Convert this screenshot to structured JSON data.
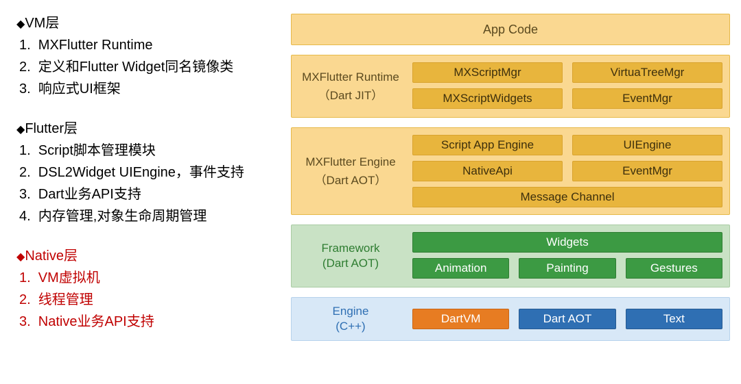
{
  "left": {
    "sections": [
      {
        "color": "black",
        "title": "VM层",
        "items": [
          "MXFlutter Runtime",
          "定义和Flutter Widget同名镜像类",
          "响应式UI框架"
        ]
      },
      {
        "color": "black",
        "title": "Flutter层",
        "items": [
          "Script脚本管理模块",
          "DSL2Widget UIEngine，事件支持",
          "Dart业务API支持",
          "内存管理,对象生命周期管理"
        ]
      },
      {
        "color": "red",
        "title": "Native层",
        "items": [
          "VM虚拟机",
          "线程管理",
          "Native业务API支持"
        ]
      }
    ]
  },
  "diagram": {
    "appcode": {
      "label": "App Code"
    },
    "runtime": {
      "title": "MXFlutter Runtime",
      "subtitle": "（Dart JIT）",
      "rows": [
        [
          "MXScriptMgr",
          "VirtuaTreeMgr"
        ],
        [
          "MXScriptWidgets",
          "EventMgr"
        ]
      ]
    },
    "mxengine": {
      "title": "MXFlutter Engine",
      "subtitle": "（Dart AOT）",
      "rows": [
        [
          "Script App Engine",
          "UIEngine"
        ],
        [
          "NativeApi",
          "EventMgr"
        ]
      ],
      "wide": "Message Channel"
    },
    "framework": {
      "title": "Framework",
      "subtitle": "(Dart AOT)",
      "wide": "Widgets",
      "row": [
        "Animation",
        "Painting",
        "Gestures"
      ]
    },
    "engine": {
      "title": "Engine",
      "subtitle": "(C++)",
      "row_labels": [
        "DartVM",
        "Dart AOT",
        "Text"
      ],
      "row_styles": [
        "orange",
        "blue",
        "blue"
      ]
    }
  },
  "colors": {
    "orange_light": "#fad891",
    "orange_dark": "#e8b53d",
    "green_light": "#c9e2c5",
    "green_dark": "#3c9a43",
    "blue_light": "#d8e8f7",
    "blue_dark": "#2f6fb3",
    "orange_btn": "#e77c22",
    "red_text": "#c00000"
  }
}
